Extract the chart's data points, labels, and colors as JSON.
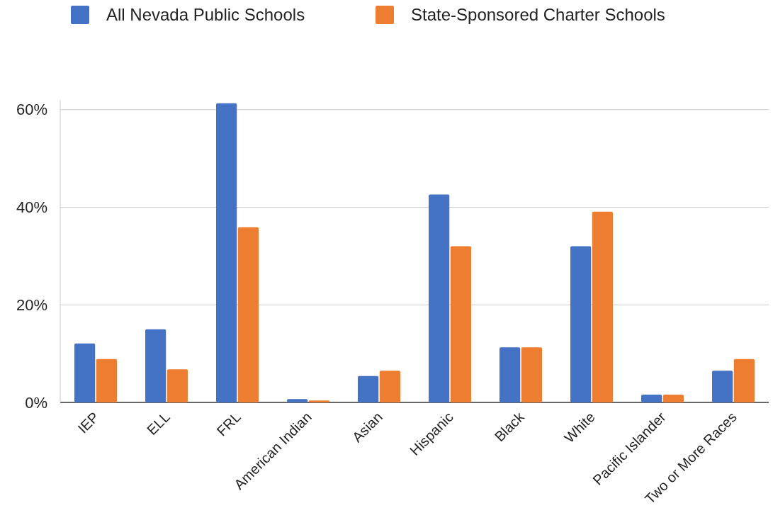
{
  "chart_data": {
    "type": "bar",
    "categories": [
      "IEP",
      "ELL",
      "FRL",
      "American Indian",
      "Asian",
      "Hispanic",
      "Black",
      "White",
      "Pacific Islander",
      "Two or More Races"
    ],
    "series": [
      {
        "name": "All Nevada Public Schools",
        "color": "#4472c4",
        "values": [
          12.1,
          15,
          61.3,
          0.7,
          5.4,
          42.6,
          11.3,
          32,
          1.6,
          6.5
        ]
      },
      {
        "name": "State-Sponsored Charter Schools",
        "color": "#ed7d31",
        "values": [
          8.9,
          6.8,
          35.9,
          0.4,
          6.5,
          32,
          11.3,
          39.1,
          1.6,
          8.9
        ]
      }
    ],
    "ylim": [
      0,
      62
    ],
    "yticks": [
      {
        "value": 0,
        "label": "0%"
      },
      {
        "value": 20,
        "label": "20%"
      },
      {
        "value": 40,
        "label": "40%"
      },
      {
        "value": 60,
        "label": "60%"
      }
    ],
    "grid": "y",
    "legend": "top left"
  }
}
